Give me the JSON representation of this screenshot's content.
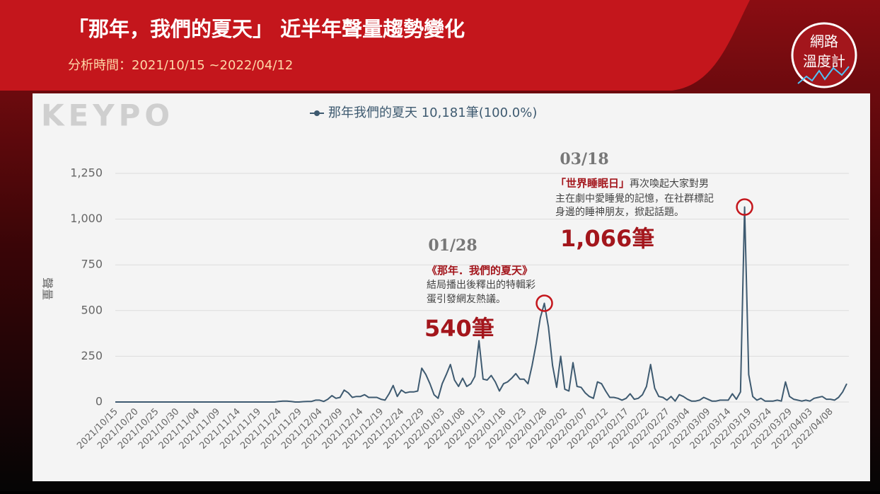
{
  "header": {
    "title": "「那年，我們的夏天」 近半年聲量趨勢變化",
    "subtitle": "分析時間：2021/10/15 ~2022/04/12",
    "brand": "KEYPO",
    "badge": [
      "網路",
      "溫度計"
    ]
  },
  "chart_data": {
    "type": "line",
    "y_label": "聲量",
    "categories": [
      "2021/10/15",
      null,
      null,
      null,
      null,
      "2021/10/20",
      null,
      null,
      null,
      null,
      "2021/10/25",
      null,
      null,
      null,
      null,
      "2021/10/30",
      null,
      null,
      null,
      null,
      "2021/11/04",
      null,
      null,
      null,
      null,
      "2021/11/09",
      null,
      null,
      null,
      null,
      "2021/11/14",
      null,
      null,
      null,
      null,
      "2021/11/19",
      null,
      null,
      null,
      null,
      "2021/11/24",
      null,
      null,
      null,
      null,
      "2021/11/29",
      null,
      null,
      null,
      null,
      "2021/12/04",
      null,
      null,
      null,
      null,
      "2021/12/09",
      null,
      null,
      null,
      null,
      "2021/12/14",
      null,
      null,
      null,
      null,
      "2021/12/19",
      null,
      null,
      null,
      null,
      "2021/12/24",
      null,
      null,
      null,
      null,
      "2021/12/29",
      null,
      null,
      null,
      null,
      "2022/01/03",
      null,
      null,
      null,
      null,
      "2022/01/08",
      null,
      null,
      null,
      null,
      "2022/01/13",
      null,
      null,
      null,
      null,
      "2022/01/18",
      null,
      null,
      null,
      null,
      "2022/01/23",
      null,
      null,
      null,
      null,
      "2022/01/28",
      null,
      null,
      null,
      null,
      "2022/02/02",
      null,
      null,
      null,
      null,
      "2022/02/07",
      null,
      null,
      null,
      null,
      "2022/02/12",
      null,
      null,
      null,
      null,
      "2022/02/17",
      null,
      null,
      null,
      null,
      "2022/02/22",
      null,
      null,
      null,
      null,
      "2022/02/27",
      null,
      null,
      null,
      null,
      "2022/03/04",
      null,
      null,
      null,
      null,
      "2022/03/09",
      null,
      null,
      null,
      null,
      "2022/03/14",
      null,
      null,
      null,
      null,
      "2022/03/19",
      null,
      null,
      null,
      null,
      "2022/03/24",
      null,
      null,
      null,
      null,
      "2022/03/29",
      null,
      null,
      null,
      null,
      "2022/04/03",
      null,
      null,
      null,
      null,
      "2022/04/08",
      null,
      null,
      null,
      null
    ],
    "series": [
      {
        "name": "那年我們的夏天 10,181筆(100.0%)",
        "color": "#3e5a70",
        "values": [
          0,
          0,
          0,
          0,
          0,
          0,
          0,
          0,
          0,
          0,
          0,
          0,
          0,
          0,
          0,
          0,
          0,
          0,
          0,
          0,
          0,
          0,
          0,
          0,
          0,
          0,
          0,
          0,
          0,
          0,
          0,
          0,
          0,
          0,
          0,
          0,
          0,
          0,
          0,
          0,
          3,
          5,
          5,
          3,
          0,
          0,
          2,
          3,
          3,
          10,
          10,
          3,
          15,
          35,
          20,
          25,
          65,
          50,
          25,
          30,
          30,
          40,
          25,
          25,
          25,
          15,
          10,
          45,
          90,
          30,
          65,
          50,
          55,
          55,
          60,
          185,
          150,
          100,
          40,
          20,
          100,
          150,
          205,
          120,
          85,
          130,
          85,
          100,
          140,
          335,
          125,
          120,
          145,
          110,
          60,
          100,
          110,
          130,
          155,
          125,
          125,
          100,
          200,
          320,
          460,
          540,
          410,
          200,
          80,
          250,
          70,
          60,
          215,
          85,
          80,
          50,
          30,
          20,
          110,
          100,
          60,
          25,
          25,
          20,
          10,
          20,
          45,
          15,
          20,
          40,
          85,
          205,
          75,
          30,
          25,
          10,
          30,
          5,
          40,
          30,
          15,
          5,
          5,
          10,
          25,
          15,
          5,
          5,
          10,
          10,
          10,
          45,
          15,
          55,
          1066,
          150,
          30,
          10,
          20,
          5,
          5,
          5,
          10,
          5,
          110,
          30,
          15,
          10,
          5,
          10,
          5,
          20,
          25,
          30,
          15,
          15,
          10,
          25,
          55,
          100
        ]
      }
    ],
    "ylim": [
      0,
      1250
    ],
    "yticks": [
      0,
      250,
      500,
      750,
      {
        "value": 1000,
        "label": "1,000"
      },
      {
        "value": 1250,
        "label": "1,250"
      }
    ],
    "grid": true,
    "annotations": [
      {
        "date": "01/28",
        "highlight": "《那年．我們的夏天》",
        "lines": [
          "結局播出後釋出的特輯彩",
          "蛋引發網友熱議。"
        ],
        "count": "540筆",
        "highlight_color": "#a3161c"
      },
      {
        "date": "03/18",
        "highlight": "「世界睡眠日」",
        "lines": [
          "再次喚起大家對男",
          "主在劇中愛睡覺的記憶，在社群標記",
          "身邊的睡神朋友，掀起話題。"
        ],
        "count": "1,066筆",
        "highlight_color": "#a3161c"
      }
    ]
  }
}
